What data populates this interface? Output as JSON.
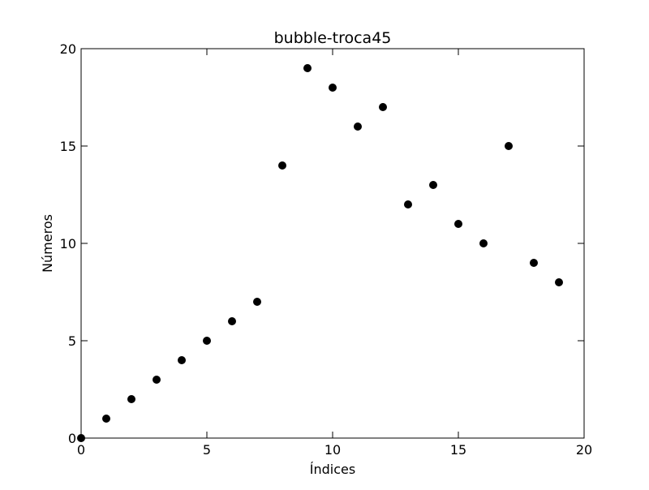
{
  "chart_data": {
    "type": "scatter",
    "title": "bubble-troca45",
    "xlabel": "Índices",
    "ylabel": "Números",
    "xlim": [
      0,
      20
    ],
    "ylim": [
      0,
      20
    ],
    "xticks": [
      0,
      5,
      10,
      15,
      20
    ],
    "yticks": [
      0,
      5,
      10,
      15,
      20
    ],
    "grid": false,
    "marker_color": "#000000",
    "series": [
      {
        "x": [
          0,
          1,
          2,
          3,
          4,
          5,
          6,
          7,
          8,
          9,
          10,
          11,
          12,
          13,
          14,
          15,
          16,
          17,
          18,
          19
        ],
        "y": [
          0,
          1,
          2,
          3,
          4,
          5,
          6,
          7,
          14,
          19,
          18,
          16,
          17,
          12,
          13,
          11,
          10,
          15,
          9,
          8
        ]
      }
    ]
  }
}
